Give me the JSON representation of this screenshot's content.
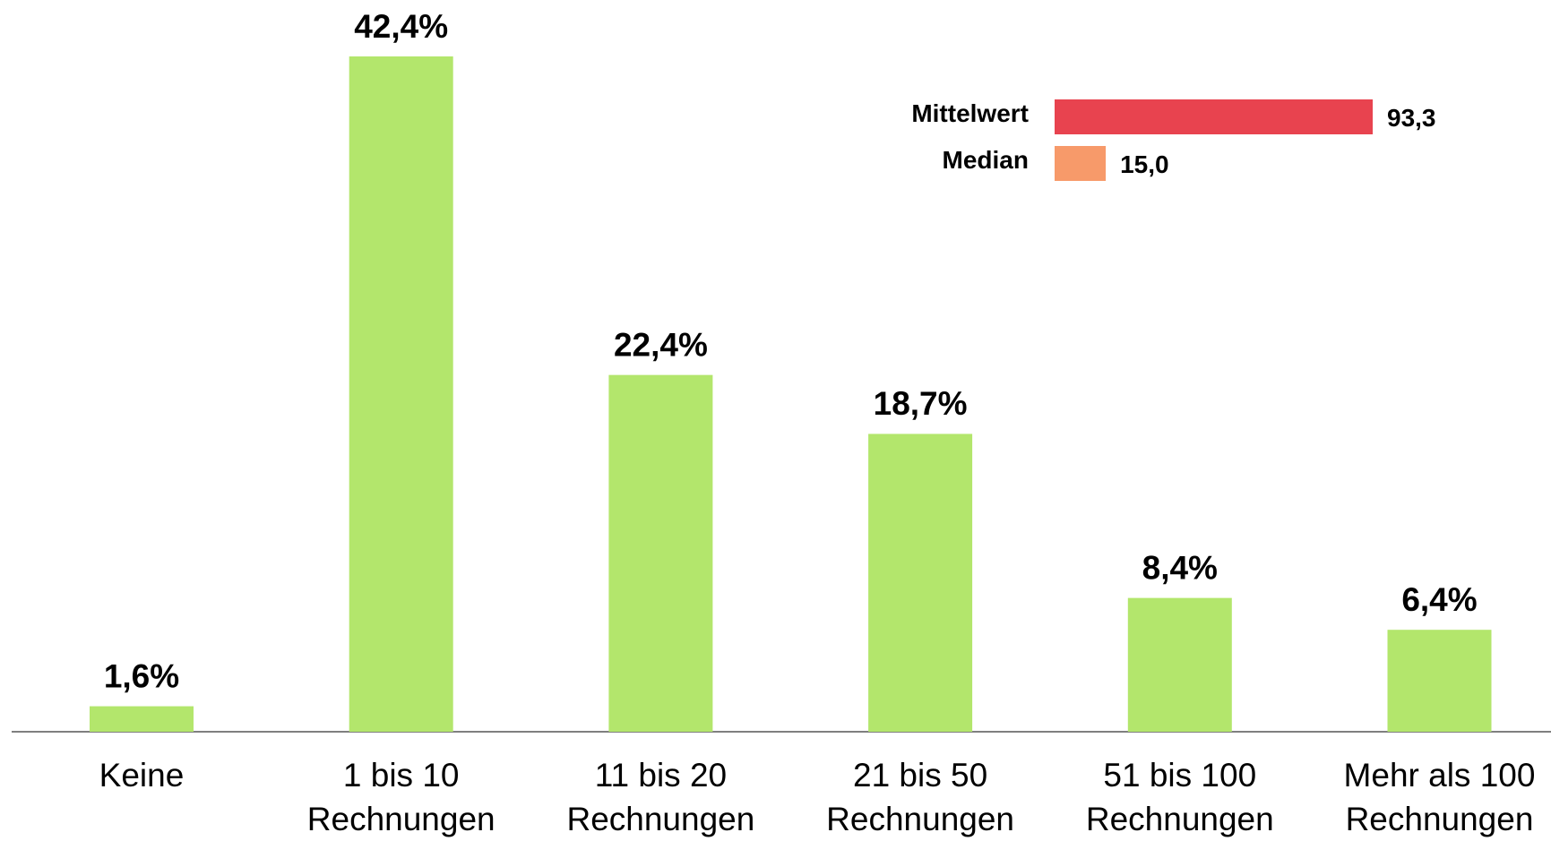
{
  "chart_data": [
    {
      "type": "bar",
      "categories": [
        [
          "Keine"
        ],
        [
          "1 bis 10",
          "Rechnungen"
        ],
        [
          "11 bis 20",
          "Rechnungen"
        ],
        [
          "21 bis 50",
          "Rechnungen"
        ],
        [
          "51 bis 100",
          "Rechnungen"
        ],
        [
          "Mehr als 100",
          "Rechnungen"
        ]
      ],
      "values": [
        1.6,
        42.4,
        22.4,
        18.7,
        8.4,
        6.4
      ],
      "value_labels": [
        "1,6%",
        "42,4%",
        "22,4%",
        "18,7%",
        "8,4%",
        "6,4%"
      ],
      "color": "#b3e66c"
    },
    {
      "type": "hbar",
      "categories": [
        "Mittelwert",
        "Median"
      ],
      "values": [
        93.3,
        15.0
      ],
      "value_labels": [
        "93,3",
        "15,0"
      ],
      "colors": [
        "#e8434f",
        "#f79a6a"
      ]
    }
  ]
}
